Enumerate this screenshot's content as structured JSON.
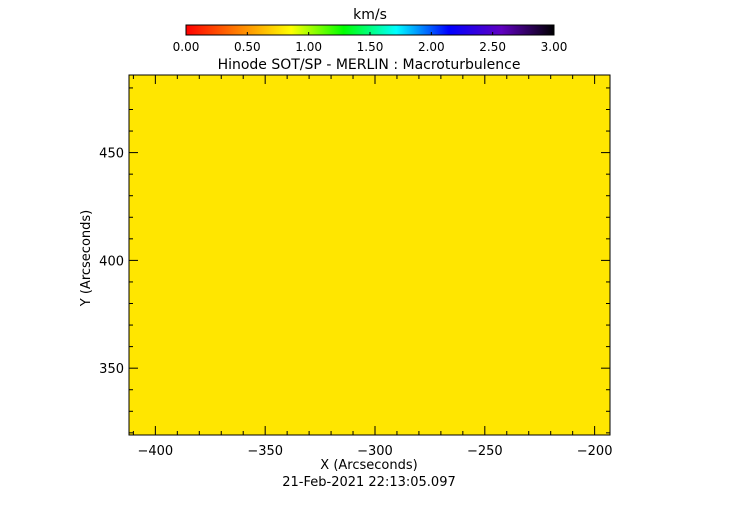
{
  "chart_data": {
    "type": "heatmap",
    "title": "Hinode SOT/SP - MERLIN : Macroturbulence",
    "xlabel": "X (Arcseconds)",
    "ylabel": "Y (Arcseconds)",
    "xlim": [
      -412,
      -193
    ],
    "ylim": [
      319,
      486
    ],
    "x_ticks": [
      -400,
      -350,
      -300,
      -250,
      -200
    ],
    "x_tick_labels": [
      "−400",
      "−350",
      "−300",
      "−250",
      "−200"
    ],
    "y_ticks": [
      350,
      400,
      450
    ],
    "y_tick_labels": [
      "350",
      "400",
      "450"
    ],
    "field_value": 0.8,
    "field_color": "#ffe600",
    "colorbar": {
      "unit": "km/s",
      "min": 0.0,
      "max": 3.0,
      "tick_values": [
        0.0,
        0.5,
        1.0,
        1.5,
        2.0,
        2.5,
        3.0
      ],
      "tick_labels": [
        "0.00",
        "0.50",
        "1.00",
        "1.50",
        "2.00",
        "2.50",
        "3.00"
      ],
      "colormap": [
        "#ff0000",
        "#ff8000",
        "#ffff00",
        "#00ff00",
        "#00ffff",
        "#0000ff",
        "#6000c0",
        "#000000"
      ]
    },
    "timestamp": "21-Feb-2021 22:13:05.097",
    "grid": false
  }
}
